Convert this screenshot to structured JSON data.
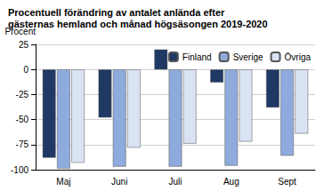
{
  "chart_data": {
    "type": "bar",
    "title": "Procentuell förändring av antalet anlända efter\ngästernas hemland och månad högsäsongen 2019-2020",
    "y_label": "Procent",
    "categories": [
      "Maj",
      "Juni",
      "Juli",
      "Aug",
      "Sept"
    ],
    "series": [
      {
        "name": "Finland",
        "color": "#1f3864",
        "values": [
          -88,
          -48,
          20,
          -13,
          -38
        ]
      },
      {
        "name": "Sverige",
        "color": "#8faadc",
        "values": [
          -99,
          -97,
          -97,
          -96,
          -86
        ]
      },
      {
        "name": "Övriga",
        "color": "#dae3f3",
        "values": [
          -93,
          -78,
          -74,
          -72,
          -64
        ]
      }
    ],
    "ylim": [
      -100,
      25
    ],
    "yticks": [
      -100,
      -75,
      -50,
      -25,
      0,
      25
    ],
    "grid": true,
    "legend": "top-right"
  }
}
